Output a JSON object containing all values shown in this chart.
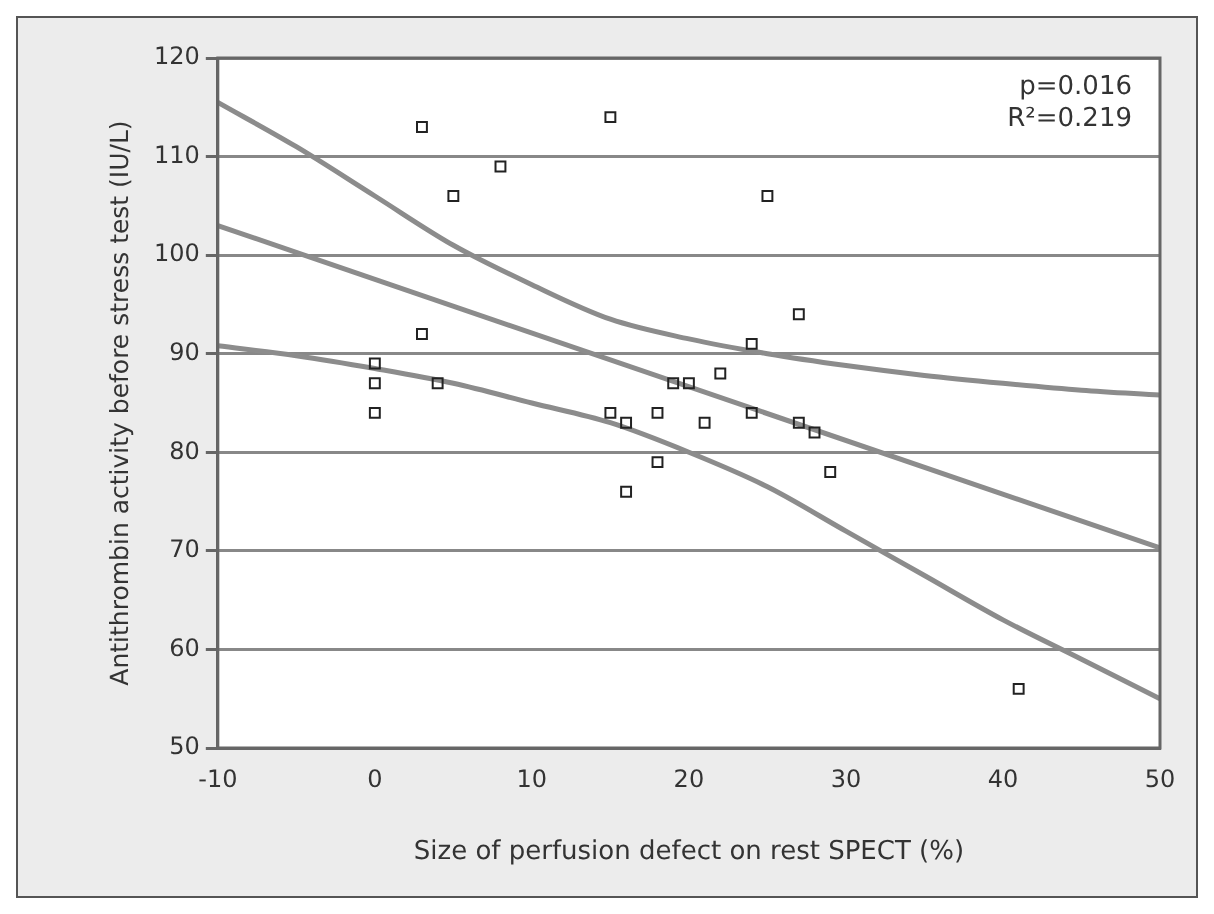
{
  "chart_data": {
    "type": "scatter",
    "xlabel": "Size of perfusion defect on rest SPECT (%)",
    "ylabel": "Antithrombin activity before stress test (IU/L)",
    "annotations": [
      "p=0.016",
      "R²=0.219"
    ],
    "xlim": [
      -10,
      50
    ],
    "xticks": [
      -10,
      0,
      10,
      20,
      30,
      40,
      50
    ],
    "ylim": [
      50,
      120
    ],
    "yticks": [
      50,
      60,
      70,
      80,
      90,
      100,
      110,
      120
    ],
    "grid": "y",
    "legend": false,
    "series": [
      {
        "marker": "square",
        "color": "#222222",
        "x": [
          0,
          0,
          0,
          3,
          3,
          4,
          5,
          8,
          15,
          15,
          16,
          16,
          18,
          18,
          19,
          20,
          21,
          22,
          24,
          24,
          25,
          27,
          27,
          28,
          29,
          41
        ],
        "values": [
          89,
          87,
          84,
          113,
          92,
          87,
          106,
          109,
          114,
          84,
          83,
          76,
          84,
          79,
          87,
          87,
          83,
          88,
          91,
          84,
          106,
          94,
          83,
          82,
          78,
          56
        ]
      },
      {
        "type": "line",
        "color": "#8c8c8c",
        "x": [
          -10,
          50
        ],
        "values": [
          103,
          70.3
        ]
      },
      {
        "type": "line",
        "color": "#8c8c8c",
        "x": [
          -10,
          -5,
          0,
          5,
          10,
          15,
          20,
          25,
          30,
          35,
          40,
          45,
          50
        ],
        "values": [
          115.5,
          111,
          106,
          101,
          97,
          93.5,
          91.5,
          90,
          88.8,
          87.8,
          87,
          86.3,
          85.8
        ]
      },
      {
        "type": "line",
        "color": "#8c8c8c",
        "x": [
          -10,
          -5,
          0,
          5,
          10,
          15,
          20,
          25,
          30,
          35,
          40,
          45,
          50
        ],
        "values": [
          90.8,
          89.8,
          88.5,
          87,
          85,
          83,
          80,
          76.5,
          72,
          67.5,
          63,
          59,
          55
        ]
      }
    ]
  }
}
